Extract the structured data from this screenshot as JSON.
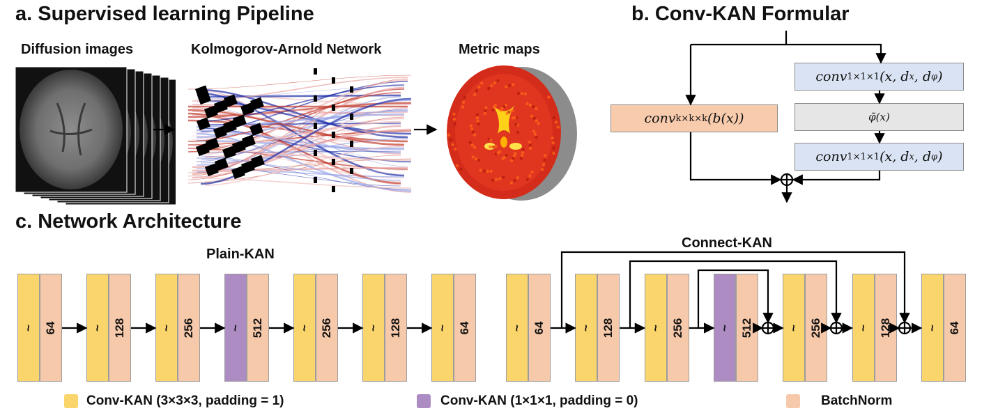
{
  "panel_a": {
    "title": "a. Supervised learning Pipeline",
    "diffusion_label": "Diffusion images",
    "kan_label": "Kolmogorov-Arnold Network",
    "metric_label": "Metric maps"
  },
  "panel_b": {
    "title": "b. Conv-KAN Formular",
    "conv_kkk": "conv",
    "conv_kkk_sub": "k×k×k",
    "conv_kkk_arg": "(b(x))",
    "conv_111": "conv",
    "conv_111_sub": "1×1×1",
    "conv_111_arg": "(x, d",
    "phi": "φ̃(x)"
  },
  "panel_c": {
    "title": "c. Network Architecture",
    "plain_label": "Plain-KAN",
    "connect_label": "Connect-KAN",
    "plain_blocks": [
      {
        "conv": "~",
        "type": "conv3",
        "bn": "64"
      },
      {
        "conv": "~",
        "type": "conv3",
        "bn": "128"
      },
      {
        "conv": "~",
        "type": "conv3",
        "bn": "256"
      },
      {
        "conv": "~",
        "type": "conv1",
        "bn": "512"
      },
      {
        "conv": "~",
        "type": "conv3",
        "bn": "256"
      },
      {
        "conv": "~",
        "type": "conv3",
        "bn": "128"
      },
      {
        "conv": "~",
        "type": "conv3",
        "bn": "64"
      }
    ],
    "connect_blocks": [
      {
        "conv": "~",
        "type": "conv3",
        "bn": "64"
      },
      {
        "conv": "~",
        "type": "conv3",
        "bn": "128"
      },
      {
        "conv": "~",
        "type": "conv3",
        "bn": "256"
      },
      {
        "conv": "~",
        "type": "conv1",
        "bn": "512"
      },
      {
        "conv": "~",
        "type": "conv3",
        "bn": "256"
      },
      {
        "conv": "~",
        "type": "conv3",
        "bn": "128"
      },
      {
        "conv": "~",
        "type": "conv3",
        "bn": "64"
      }
    ]
  },
  "legend": {
    "conv3_label": "Conv-KAN (3×3×3, padding = 1)",
    "conv1_label": "Conv-KAN (1×1×1, padding = 0)",
    "bn_label": "BatchNorm"
  },
  "colors": {
    "conv3": "#fad56b",
    "conv1": "#ad8cc4",
    "batchnorm": "#f6c9aa",
    "conv_kkk_box": "#f8cbad",
    "conv_111_box": "#dae3f3",
    "phi_box": "#e7e6e6"
  }
}
